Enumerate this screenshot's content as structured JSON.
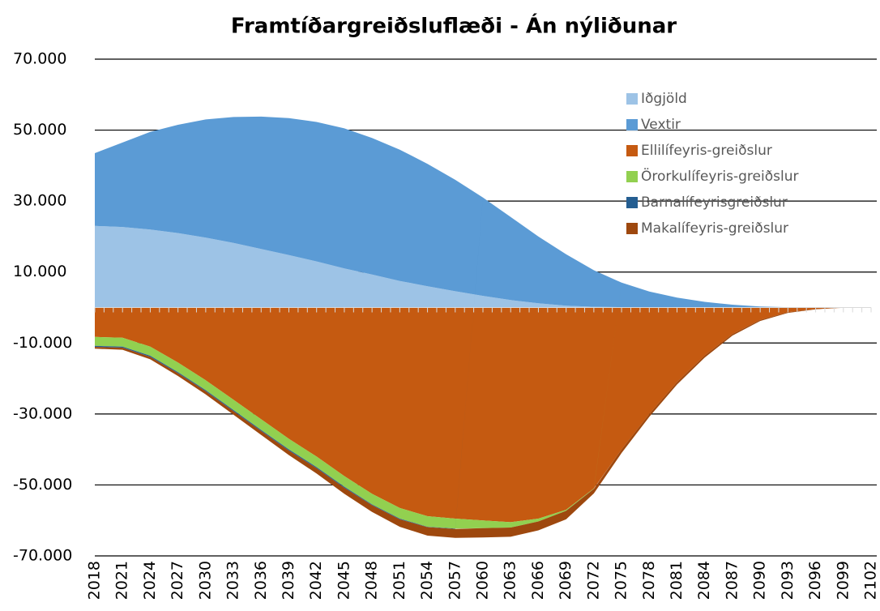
{
  "chart_data": {
    "type": "stacked_area",
    "title": "Framtíðargreiðsluflæði - Án nýliðunar",
    "categories": [
      "2018",
      "2021",
      "2024",
      "2027",
      "2030",
      "2033",
      "2036",
      "2039",
      "2042",
      "2045",
      "2048",
      "2051",
      "2054",
      "2057",
      "2060",
      "2063",
      "2066",
      "2069",
      "2072",
      "2075",
      "2078",
      "2081",
      "2084",
      "2087",
      "2090",
      "2093",
      "2096",
      "2099",
      "2102"
    ],
    "series": [
      {
        "name": "Iðgjöld",
        "color": "#9dc3e6",
        "values": [
          23000,
          22700,
          22000,
          21000,
          19700,
          18200,
          16500,
          14800,
          13000,
          11000,
          9300,
          7500,
          6000,
          4600,
          3300,
          2100,
          1200,
          500,
          200,
          100,
          0,
          0,
          0,
          0,
          0,
          0,
          0,
          0,
          0
        ]
      },
      {
        "name": "Vextir",
        "color": "#5b9bd5",
        "values": [
          20500,
          23800,
          27500,
          30500,
          33300,
          35500,
          37300,
          38600,
          39300,
          39500,
          38500,
          37000,
          34500,
          31400,
          27700,
          23400,
          18800,
          14500,
          10300,
          6900,
          4500,
          2800,
          1600,
          800,
          300,
          100,
          0,
          0,
          0
        ]
      },
      {
        "name": "Ellilífeyris-greiðslur",
        "color": "#c55a11",
        "values": [
          -8300,
          -8500,
          -11000,
          -15500,
          -20500,
          -26000,
          -31500,
          -37000,
          -42000,
          -47500,
          -52500,
          -56500,
          -58800,
          -59500,
          -60000,
          -60500,
          -59500,
          -57000,
          -51000,
          -40000,
          -30000,
          -21000,
          -13500,
          -7500,
          -3500,
          -1300,
          -400,
          -100,
          0
        ]
      },
      {
        "name": "Örorkulífeyris-greiðslur",
        "color": "#92d050",
        "values": [
          -2500,
          -2500,
          -2600,
          -2700,
          -2800,
          -2900,
          -3000,
          -3000,
          -3000,
          -3000,
          -3000,
          -3000,
          -3000,
          -2800,
          -2200,
          -1500,
          -800,
          -300,
          -100,
          0,
          0,
          0,
          0,
          0,
          0,
          0,
          0,
          0,
          0
        ]
      },
      {
        "name": "Barnalífeyrisgreiðslur",
        "color": "#255e91",
        "values": [
          -300,
          -300,
          -300,
          -300,
          -300,
          -300,
          -300,
          -300,
          -300,
          -300,
          -200,
          -200,
          -100,
          -100,
          0,
          0,
          0,
          0,
          0,
          0,
          0,
          0,
          0,
          0,
          0,
          0,
          0,
          0,
          0
        ]
      },
      {
        "name": "Makalífeyris-greiðslur",
        "color": "#9e480e",
        "values": [
          -500,
          -600,
          -700,
          -800,
          -900,
          -1000,
          -1100,
          -1300,
          -1500,
          -1700,
          -1900,
          -2100,
          -2400,
          -2500,
          -2600,
          -2600,
          -2500,
          -2400,
          -1300,
          -1000,
          -800,
          -700,
          -600,
          -400,
          -300,
          -200,
          -100,
          0,
          0
        ]
      }
    ],
    "ylim": [
      -70000,
      70000
    ],
    "yticks": [
      {
        "value": -70000,
        "label": "-70.000"
      },
      {
        "value": -50000,
        "label": "-50.000"
      },
      {
        "value": -30000,
        "label": "-30.000"
      },
      {
        "value": -10000,
        "label": "-10.000"
      },
      {
        "value": 10000,
        "label": "10.000"
      },
      {
        "value": 30000,
        "label": "30.000"
      },
      {
        "value": 50000,
        "label": "50.000"
      },
      {
        "value": 70000,
        "label": "70.000"
      }
    ],
    "grid": true,
    "legend": "upper right"
  }
}
